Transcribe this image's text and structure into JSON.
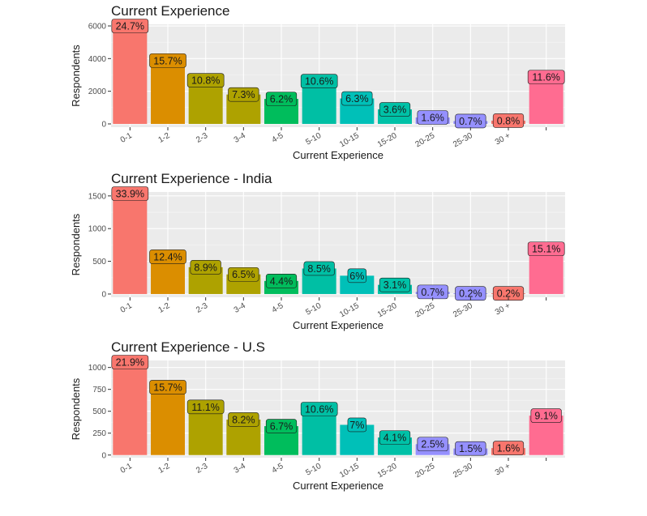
{
  "colors": {
    "panel_bg": "#EBEBEB",
    "grid": "#FFFFFF",
    "bars": [
      "#F8766D",
      "#DB8E00",
      "#AEA200",
      "#64B200",
      "#00BD5C",
      "#00C1A7",
      "#00BADE",
      "#00A6FF",
      "#B385FF",
      "#EF67EB",
      "#FF63B6",
      "#F8766D"
    ]
  },
  "chart_data": [
    {
      "type": "bar",
      "title": "Current Experience",
      "xlabel": "Current Experience",
      "ylabel": "Respondents",
      "categories": [
        "0-1",
        "1-2",
        "2-3",
        "3-4",
        "4-5",
        "5-10",
        "10-15",
        "15-20",
        "20-25",
        "25-30",
        "30 +",
        ""
      ],
      "values": [
        6100,
        3880,
        2670,
        1800,
        1530,
        2620,
        1560,
        890,
        395,
        175,
        200,
        2870
      ],
      "labels": [
        "24.7%",
        "15.7%",
        "10.8%",
        "7.3%",
        "6.2%",
        "10.6%",
        "6.3%",
        "3.6%",
        "1.6%",
        "0.7%",
        "0.8%",
        "11.6%"
      ],
      "ylim": [
        -200,
        6100
      ],
      "yticks": [
        0,
        2000,
        4000,
        6000
      ],
      "ytick_labels": [
        "0",
        "2000",
        "4000",
        "6000"
      ],
      "bar_colors": [
        "#F8766D",
        "#DB8E00",
        "#AEA200",
        "#AEA200",
        "#00BD5C",
        "#00BFA4",
        "#00C0B8",
        "#00C1A7",
        "#9590FF",
        "#9590FF",
        "#F8766D",
        "#FF6C91"
      ]
    },
    {
      "type": "bar",
      "title": "Current Experience - India",
      "xlabel": "Current Experience",
      "ylabel": "Respondents",
      "categories": [
        "0-1",
        "1-2",
        "2-3",
        "3-4",
        "4-5",
        "5-10",
        "10-15",
        "15-20",
        "20-25",
        "25-30",
        "30 +",
        ""
      ],
      "values": [
        1560,
        570,
        410,
        300,
        200,
        390,
        280,
        140,
        32,
        10,
        10,
        690
      ],
      "labels": [
        "33.9%",
        "12.4%",
        "8.9%",
        "6.5%",
        "4.4%",
        "8.5%",
        "6%",
        "3.1%",
        "0.7%",
        "0.2%",
        "0.2%",
        "15.1%"
      ],
      "ylim": [
        -50,
        1560
      ],
      "yticks": [
        0,
        500,
        1000,
        1500
      ],
      "ytick_labels": [
        "0",
        "500",
        "1000",
        "1500"
      ],
      "bar_colors": [
        "#F8766D",
        "#DB8E00",
        "#AEA200",
        "#AEA200",
        "#00BD5C",
        "#00BFA4",
        "#00C0B8",
        "#00C1A7",
        "#9590FF",
        "#9590FF",
        "#F8766D",
        "#FF6C91"
      ]
    },
    {
      "type": "bar",
      "title": "Current Experience - U.S",
      "xlabel": "Current Experience",
      "ylabel": "Respondents",
      "categories": [
        "0-1",
        "1-2",
        "2-3",
        "3-4",
        "4-5",
        "5-10",
        "10-15",
        "15-20",
        "20-25",
        "25-30",
        "30 +",
        ""
      ],
      "values": [
        1080,
        775,
        550,
        405,
        330,
        525,
        345,
        200,
        125,
        75,
        80,
        450
      ],
      "labels": [
        "21.9%",
        "15.7%",
        "11.1%",
        "8.2%",
        "6.7%",
        "10.6%",
        "7%",
        "4.1%",
        "2.5%",
        "1.5%",
        "1.6%",
        "9.1%"
      ],
      "ylim": [
        -30,
        1080
      ],
      "yticks": [
        0,
        250,
        500,
        750,
        1000
      ],
      "ytick_labels": [
        "0",
        "250",
        "500",
        "750",
        "1000"
      ],
      "bar_colors": [
        "#F8766D",
        "#DB8E00",
        "#AEA200",
        "#AEA200",
        "#00BD5C",
        "#00BFA4",
        "#00C0B8",
        "#00C1A7",
        "#9590FF",
        "#9590FF",
        "#F8766D",
        "#FF6C91"
      ]
    }
  ]
}
